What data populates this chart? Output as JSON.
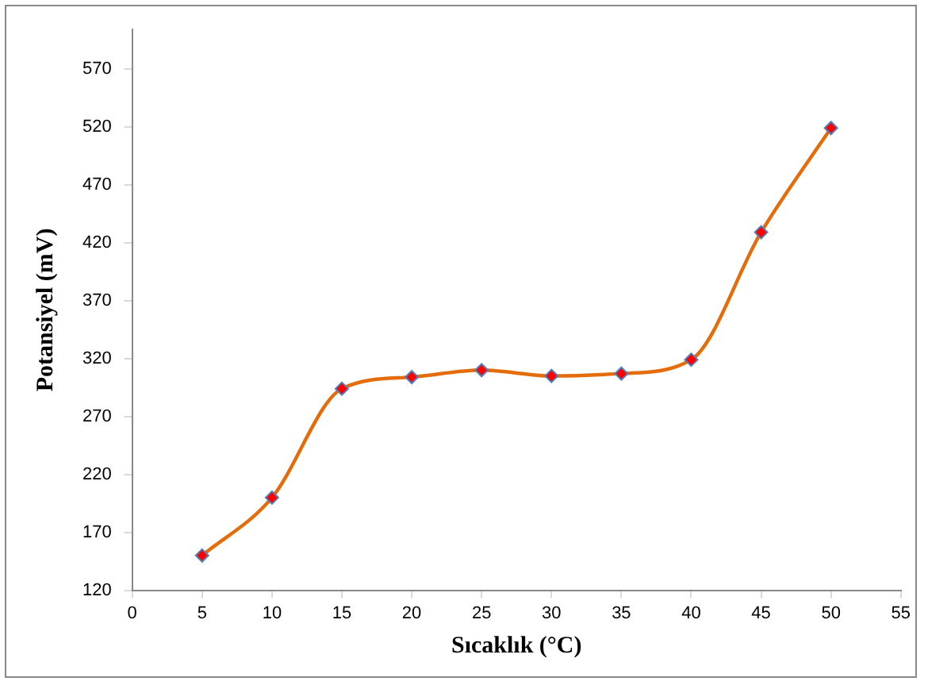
{
  "chart_data": {
    "type": "line",
    "xlabel": "Sıcaklık (°C)",
    "ylabel": "Potansiyel (mV)",
    "x": [
      5,
      10,
      15,
      20,
      25,
      30,
      35,
      40,
      45,
      50
    ],
    "series": [
      {
        "color": "#e46c0a",
        "values": [
          150,
          200,
          294,
          304,
          310,
          305,
          307,
          319,
          429,
          519
        ]
      }
    ],
    "xlim": [
      0,
      55
    ],
    "xticks": [
      0,
      5,
      10,
      15,
      20,
      25,
      30,
      35,
      40,
      45,
      50,
      55
    ],
    "ylim": [
      120,
      604
    ],
    "yticks": [
      120,
      170,
      220,
      270,
      320,
      370,
      420,
      470,
      520,
      570
    ],
    "grid": false,
    "legend": false,
    "marker": "diamond",
    "line_style": "solid"
  }
}
